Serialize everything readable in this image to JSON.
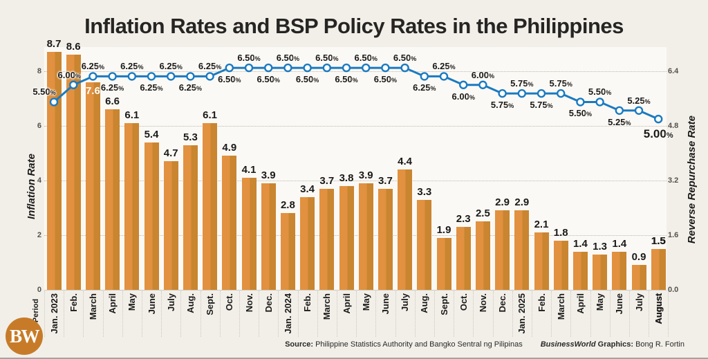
{
  "title": "Inflation Rates and BSP Policy Rates in the Philippines",
  "footer": {
    "source_label": "Source:",
    "source_text": "Philippine Statistics Authority and Bangko Sentral ng Pilipinas",
    "credit_brand": "BusinessWorld",
    "credit_label": "Graphics:",
    "credit_text": "Bong R. Fortin"
  },
  "logo": {
    "text": "BW"
  },
  "chart_data": {
    "type": "bar+line combo",
    "title": "Inflation Rates and BSP Policy Rates in the Philippines",
    "xlabel": "Period",
    "ylabel_left": "Inflation Rate",
    "ylabel_right": "Reverse Repurchase Rate",
    "categories": [
      "Jan. 2023",
      "Feb.",
      "March",
      "April",
      "May",
      "June",
      "July",
      "Aug.",
      "Sept.",
      "Oct.",
      "Nov.",
      "Dec.",
      "Jan. 2024",
      "Feb.",
      "March",
      "April",
      "May",
      "June",
      "July",
      "Aug.",
      "Sept.",
      "Oct.",
      "Nov.",
      "Dec.",
      "Jan. 2025",
      "Feb.",
      "March",
      "April",
      "May",
      "June",
      "July",
      "August"
    ],
    "series": [
      {
        "name": "Inflation Rate",
        "type": "bar",
        "axis": "left",
        "values": [
          8.7,
          8.6,
          7.6,
          6.6,
          6.1,
          5.4,
          4.7,
          5.3,
          6.1,
          4.9,
          4.1,
          3.9,
          2.8,
          3.4,
          3.7,
          3.8,
          3.9,
          3.7,
          4.4,
          3.3,
          1.9,
          2.3,
          2.5,
          2.9,
          2.9,
          2.1,
          1.8,
          1.4,
          1.3,
          1.4,
          0.9,
          1.5
        ]
      },
      {
        "name": "Reverse Repurchase Rate",
        "type": "line",
        "axis": "right",
        "values": [
          5.5,
          6.0,
          6.25,
          6.25,
          6.25,
          6.25,
          6.25,
          6.25,
          6.25,
          6.5,
          6.5,
          6.5,
          6.5,
          6.5,
          6.5,
          6.5,
          6.5,
          6.5,
          6.5,
          6.25,
          6.25,
          6.0,
          6.0,
          5.75,
          5.75,
          5.75,
          5.75,
          5.5,
          5.5,
          5.25,
          5.25,
          5.0
        ]
      }
    ],
    "line_label_positions": [
      "above",
      "above",
      "above",
      "below",
      "above",
      "below",
      "above",
      "below",
      "above",
      "below",
      "above",
      "below",
      "above",
      "below",
      "above",
      "below",
      "above",
      "below",
      "above",
      "below",
      "above",
      "below",
      "above",
      "below",
      "above",
      "below",
      "above",
      "below",
      "above",
      "below",
      "above",
      "below"
    ],
    "inside_label_indices": [
      2
    ],
    "yticks_left": [
      0,
      2,
      4,
      6,
      8
    ],
    "yticks_right": [
      0.0,
      1.6,
      3.2,
      4.8,
      6.4
    ],
    "ylim_left": [
      0,
      8.85
    ],
    "ylim_right": [
      0,
      7.08
    ],
    "grid": "horizontal dotted",
    "legend": "none",
    "colors": {
      "bar_light": "#E19140",
      "bar_dark": "#C98530",
      "line": "#1A7AC1",
      "marker_fill": "#FFFFFF",
      "background": "#F2EFE9",
      "plot_background": "#FBF9F5"
    }
  }
}
